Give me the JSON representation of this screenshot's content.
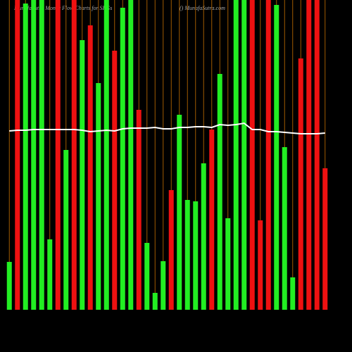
{
  "chart_data": {
    "type": "bar",
    "title": "MunafaSutra Money Flow Charts for SPGs",
    "subtitle": "() MunafaSutra.com",
    "ylim": [
      0,
      440
    ],
    "values": [
      68,
      440,
      435,
      440,
      440,
      100,
      440,
      227,
      440,
      383,
      404,
      322,
      440,
      368,
      429,
      440,
      284,
      95,
      24,
      69,
      170,
      277,
      156,
      154,
      208,
      256,
      335,
      130,
      440,
      440,
      440,
      127,
      440,
      433,
      231,
      46,
      357,
      440,
      440,
      201
    ],
    "colors": [
      "#22ee22",
      "#ee1111",
      "#22ee22",
      "#22ee22",
      "#22ee22",
      "#22ee22",
      "#ee1111",
      "#22ee22",
      "#ee1111",
      "#22ee22",
      "#ee1111",
      "#22ee22",
      "#22ee22",
      "#ee1111",
      "#22ee22",
      "#22ee22",
      "#ee1111",
      "#22ee22",
      "#22ee22",
      "#22ee22",
      "#ee1111",
      "#22ee22",
      "#22ee22",
      "#22ee22",
      "#22ee22",
      "#ee1111",
      "#22ee22",
      "#22ee22",
      "#22ee22",
      "#22ee22",
      "#ee1111",
      "#ee1111",
      "#ee1111",
      "#22ee22",
      "#22ee22",
      "#22ee22",
      "#ee1111",
      "#ee1111",
      "#ee1111",
      "#ee1111"
    ],
    "line_values": [
      254,
      255,
      255,
      256,
      256,
      256,
      256,
      256,
      256,
      255,
      253,
      254,
      255,
      254,
      257,
      258,
      258,
      258,
      259,
      257,
      257,
      259,
      259,
      260,
      260,
      259,
      263,
      262,
      263,
      265,
      256,
      256,
      253,
      253,
      252,
      251,
      250,
      250,
      250,
      251
    ],
    "line_color": "#ffffff",
    "separator_color": "#a05a00"
  }
}
